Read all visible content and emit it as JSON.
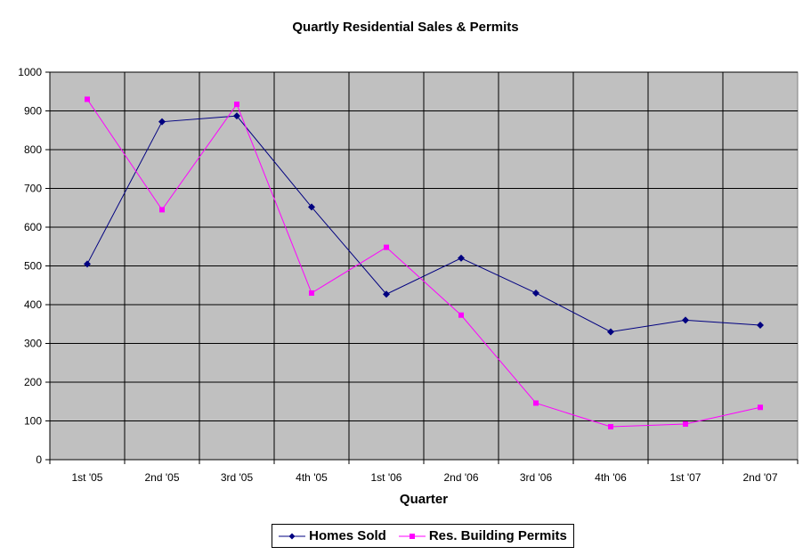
{
  "chart_data": {
    "type": "line",
    "title": "Quartly Residential Sales & Permits",
    "xlabel": "Quarter",
    "ylabel": "",
    "ylim": [
      0,
      1000
    ],
    "yticks": [
      0,
      100,
      200,
      300,
      400,
      500,
      600,
      700,
      800,
      900,
      1000
    ],
    "grid": true,
    "legend_position": "bottom",
    "categories": [
      "1st '05",
      "2nd '05",
      "3rd '05",
      "4th '05",
      "1st '06",
      "2nd '06",
      "3rd '06",
      "4th '06",
      "1st '07",
      "2nd '07"
    ],
    "series": [
      {
        "name": "Homes Sold",
        "color": "#000080",
        "marker": "diamond",
        "values": [
          505,
          872,
          887,
          652,
          427,
          520,
          430,
          330,
          360,
          347
        ]
      },
      {
        "name": "Res. Building Permits",
        "color": "#ff00ff",
        "marker": "square",
        "values": [
          930,
          645,
          917,
          430,
          548,
          373,
          146,
          85,
          92,
          135
        ]
      }
    ]
  },
  "colors": {
    "plot_background": "#c0c0c0",
    "gridline": "#000000"
  }
}
